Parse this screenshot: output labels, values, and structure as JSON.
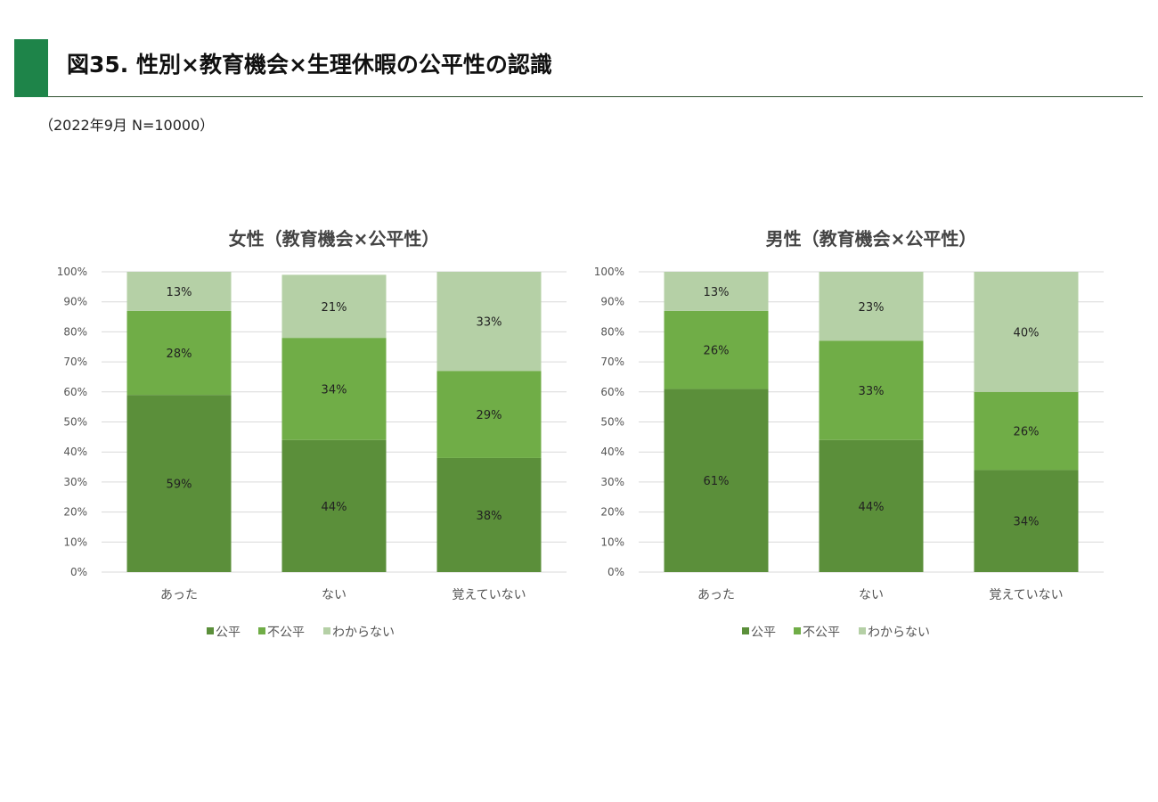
{
  "header": {
    "title": "図35. 性別×教育機会×生理休暇の公平性の認識",
    "subtitle": "（2022年9月 N=10000）"
  },
  "colors": {
    "fair": "#5b8f3a",
    "unfair": "#70ad47",
    "unknown": "#b5d0a6",
    "grid": "#d9d9d9",
    "accent": "#1e8449"
  },
  "chart_data": [
    {
      "type": "bar",
      "stacked": true,
      "title": "女性（教育機会×公平性）",
      "categories": [
        "あった",
        "ない",
        "覚えていない"
      ],
      "series": [
        {
          "name": "公平",
          "values": [
            59,
            44,
            38
          ],
          "labels": [
            "59%",
            "44%",
            "38%"
          ]
        },
        {
          "name": "不公平",
          "values": [
            28,
            34,
            29
          ],
          "labels": [
            "28%",
            "34%",
            "29%"
          ]
        },
        {
          "name": "わからない",
          "values": [
            13,
            21,
            33
          ],
          "labels": [
            "13%",
            "21%",
            "33%"
          ]
        }
      ],
      "ylim": [
        0,
        100
      ],
      "yticks": [
        "0%",
        "10%",
        "20%",
        "30%",
        "40%",
        "50%",
        "60%",
        "70%",
        "80%",
        "90%",
        "100%"
      ],
      "legend": "bottom"
    },
    {
      "type": "bar",
      "stacked": true,
      "title": "男性（教育機会×公平性）",
      "categories": [
        "あった",
        "ない",
        "覚えていない"
      ],
      "series": [
        {
          "name": "公平",
          "values": [
            61,
            44,
            34
          ],
          "labels": [
            "61%",
            "44%",
            "34%"
          ]
        },
        {
          "name": "不公平",
          "values": [
            26,
            33,
            26
          ],
          "labels": [
            "26%",
            "33%",
            "26%"
          ]
        },
        {
          "name": "わからない",
          "values": [
            13,
            23,
            40
          ],
          "labels": [
            "13%",
            "23%",
            "40%"
          ]
        }
      ],
      "ylim": [
        0,
        100
      ],
      "yticks": [
        "0%",
        "10%",
        "20%",
        "30%",
        "40%",
        "50%",
        "60%",
        "70%",
        "80%",
        "90%",
        "100%"
      ],
      "legend": "bottom"
    }
  ]
}
